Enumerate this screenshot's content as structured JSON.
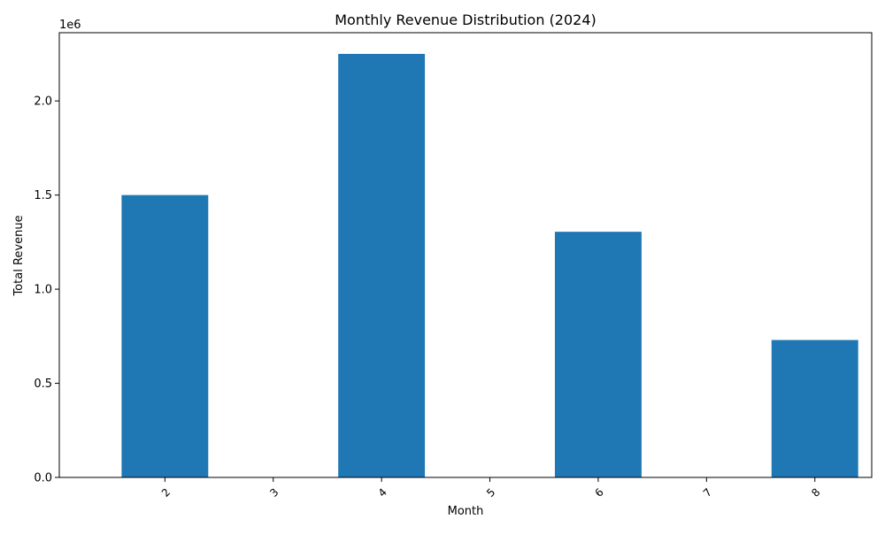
{
  "chart_data": {
    "type": "bar",
    "title": "Monthly Revenue Distribution (2024)",
    "xlabel": "Month",
    "ylabel": "Total Revenue",
    "offset_text": "1e6",
    "categories": [
      "2",
      "3",
      "4",
      "5",
      "6",
      "7",
      "8"
    ],
    "values": [
      1500000,
      0,
      2250000,
      0,
      1305000,
      0,
      730000
    ],
    "ylim": [
      0,
      2362500
    ],
    "y_ticks": [
      0,
      500000,
      1000000,
      1500000,
      2000000
    ],
    "y_tick_labels": [
      "0.0",
      "0.5",
      "1.0",
      "1.5",
      "2.0"
    ],
    "grid": false,
    "legend": "none",
    "bar_color": "#1f77b4",
    "x_tick_rotation": 45
  }
}
